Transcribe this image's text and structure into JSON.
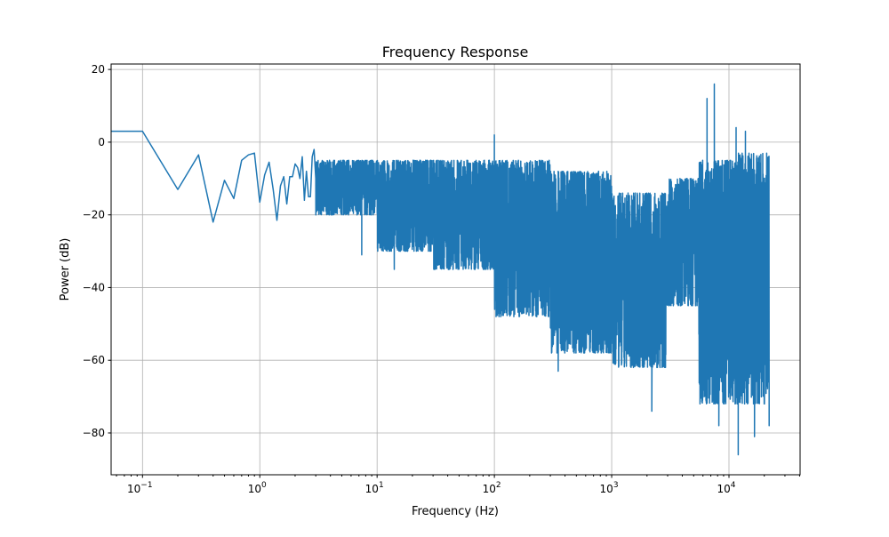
{
  "chart_data": {
    "type": "line",
    "title": "Frequency Response",
    "xlabel": "Frequency (Hz)",
    "ylabel": "Power (dB)",
    "xscale": "log",
    "xlim": [
      0.054,
      40400
    ],
    "ylim": [
      -91.5,
      21.5
    ],
    "grid": true,
    "line_color": "#1f77b4",
    "x_ticks": [
      {
        "v": 0.1,
        "base": "10",
        "exp": "−1"
      },
      {
        "v": 1,
        "base": "10",
        "exp": "0"
      },
      {
        "v": 10,
        "base": "10",
        "exp": "1"
      },
      {
        "v": 100,
        "base": "10",
        "exp": "2"
      },
      {
        "v": 1000,
        "base": "10",
        "exp": "3"
      },
      {
        "v": 10000,
        "base": "10",
        "exp": "4"
      }
    ],
    "y_ticks": [
      {
        "v": 20,
        "label": "20"
      },
      {
        "v": 0,
        "label": "0"
      },
      {
        "v": -20,
        "label": "−20"
      },
      {
        "v": -40,
        "label": "−40"
      },
      {
        "v": -60,
        "label": "−60"
      },
      {
        "v": -80,
        "label": "−80"
      }
    ],
    "low_freq_points": [
      [
        0.054,
        3
      ],
      [
        0.1,
        3
      ],
      [
        0.2,
        -13
      ],
      [
        0.3,
        -3.5
      ],
      [
        0.4,
        -22
      ],
      [
        0.5,
        -10.5
      ],
      [
        0.6,
        -15.5
      ],
      [
        0.7,
        -5
      ],
      [
        0.8,
        -3.5
      ],
      [
        0.9,
        -3
      ],
      [
        1.0,
        -16.5
      ],
      [
        1.1,
        -9
      ],
      [
        1.2,
        -5.5
      ],
      [
        1.3,
        -13
      ],
      [
        1.4,
        -21.5
      ],
      [
        1.5,
        -12
      ],
      [
        1.6,
        -9.5
      ],
      [
        1.7,
        -17
      ],
      [
        1.8,
        -9.5
      ],
      [
        1.9,
        -9.5
      ],
      [
        2.0,
        -6
      ],
      [
        2.1,
        -7
      ],
      [
        2.2,
        -10
      ],
      [
        2.3,
        -4
      ],
      [
        2.4,
        -16
      ],
      [
        2.5,
        -8
      ],
      [
        2.6,
        -15
      ],
      [
        2.7,
        -15
      ],
      [
        2.8,
        -4
      ],
      [
        2.9,
        -2
      ],
      [
        3.0,
        -10
      ]
    ],
    "noise_bands": [
      {
        "f": [
          3,
          10
        ],
        "upper": -5,
        "lower": -20
      },
      {
        "f": [
          10,
          30
        ],
        "upper": -5,
        "lower": -30
      },
      {
        "f": [
          30,
          100
        ],
        "upper": -5,
        "lower": -35
      },
      {
        "f": [
          100,
          300
        ],
        "upper": -5,
        "lower": -48
      },
      {
        "f": [
          300,
          1000
        ],
        "upper": -8,
        "lower": -58
      },
      {
        "f": [
          1000,
          2900
        ],
        "upper": -14,
        "lower": -62
      },
      {
        "f": [
          2900,
          5500
        ],
        "upper": -10,
        "lower": -45
      },
      {
        "f": [
          5500,
          12000
        ],
        "upper": -5,
        "lower": -72
      },
      {
        "f": [
          12000,
          22000
        ],
        "upper": -3,
        "lower": -72
      }
    ],
    "spikes": [
      [
        7.4,
        -31
      ],
      [
        14,
        -35
      ],
      [
        100,
        2
      ],
      [
        100.5,
        -46
      ],
      [
        350,
        -63
      ],
      [
        2200,
        -74
      ],
      [
        6500,
        12
      ],
      [
        7500,
        16
      ],
      [
        8200,
        -78
      ],
      [
        11500,
        4
      ],
      [
        12000,
        -86
      ],
      [
        13800,
        3
      ],
      [
        16500,
        -81
      ],
      [
        22000,
        -78
      ]
    ]
  }
}
